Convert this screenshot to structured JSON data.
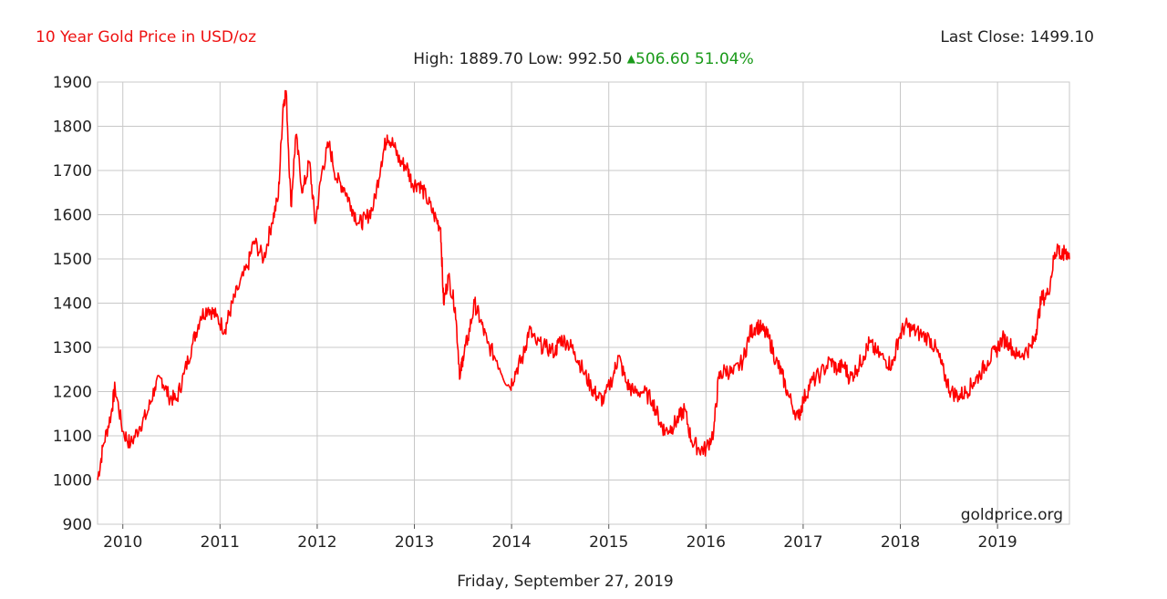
{
  "header": {
    "title": "10 Year Gold Price in USD/oz",
    "last_close_label": "Last Close:",
    "last_close_value": "1499.10",
    "high_label": "High:",
    "high_value": "1889.70",
    "low_label": "Low:",
    "low_value": "992.50",
    "change_value": "506.60",
    "change_pct": "51.04%",
    "change_icon": "up-triangle-icon"
  },
  "footer": {
    "date": "Friday, September 27, 2019"
  },
  "watermark": "goldprice.org",
  "colors": {
    "line": "#ff0000",
    "title": "#ee1111",
    "up": "#1a9a1a",
    "grid": "#c8c8c8"
  },
  "chart_data": {
    "type": "line",
    "title": "10 Year Gold Price in USD/oz",
    "xlabel": "",
    "ylabel": "",
    "ylim": [
      900,
      1900
    ],
    "xlim": [
      2009.74,
      2019.74
    ],
    "yticks": [
      "900",
      "1000",
      "1100",
      "1200",
      "1300",
      "1400",
      "1500",
      "1600",
      "1700",
      "1800",
      "1900"
    ],
    "xticks": [
      "2010",
      "2011",
      "2012",
      "2013",
      "2014",
      "2015",
      "2016",
      "2017",
      "2018",
      "2019"
    ],
    "grid": true,
    "legend": "none",
    "series": [
      {
        "x": [
          2009.74,
          2009.8,
          2009.88,
          2009.92,
          2010.0,
          2010.08,
          2010.17,
          2010.25,
          2010.33,
          2010.4,
          2010.47,
          2010.55,
          2010.63,
          2010.72,
          2010.8,
          2010.88,
          2010.96,
          2011.05,
          2011.1,
          2011.18,
          2011.28,
          2011.35,
          2011.45,
          2011.53,
          2011.6,
          2011.65,
          2011.68,
          2011.73,
          2011.78,
          2011.85,
          2011.92,
          2011.98,
          2012.05,
          2012.12,
          2012.2,
          2012.28,
          2012.35,
          2012.43,
          2012.5,
          2012.58,
          2012.66,
          2012.72,
          2012.78,
          2012.85,
          2012.92,
          2012.98,
          2013.05,
          2013.12,
          2013.2,
          2013.27,
          2013.3,
          2013.35,
          2013.42,
          2013.47,
          2013.5,
          2013.55,
          2013.62,
          2013.68,
          2013.75,
          2013.85,
          2013.98,
          2014.05,
          2014.12,
          2014.18,
          2014.25,
          2014.35,
          2014.45,
          2014.5,
          2014.58,
          2014.65,
          2014.73,
          2014.82,
          2014.88,
          2014.95,
          2015.05,
          2015.1,
          2015.18,
          2015.25,
          2015.35,
          2015.45,
          2015.53,
          2015.58,
          2015.65,
          2015.72,
          2015.78,
          2015.85,
          2015.93,
          2016.0,
          2016.08,
          2016.13,
          2016.2,
          2016.28,
          2016.38,
          2016.45,
          2016.52,
          2016.58,
          2016.65,
          2016.72,
          2016.78,
          2016.85,
          2016.95,
          2017.0,
          2017.08,
          2017.18,
          2017.28,
          2017.35,
          2017.42,
          2017.48,
          2017.55,
          2017.62,
          2017.68,
          2017.75,
          2017.85,
          2017.92,
          2017.98,
          2018.05,
          2018.12,
          2018.2,
          2018.3,
          2018.38,
          2018.45,
          2018.52,
          2018.6,
          2018.68,
          2018.75,
          2018.82,
          2018.9,
          2018.98,
          2019.05,
          2019.12,
          2019.2,
          2019.28,
          2019.35,
          2019.4,
          2019.45,
          2019.52,
          2019.58,
          2019.62,
          2019.66,
          2019.7,
          2019.74
        ],
        "y": [
          1000,
          1080,
          1150,
          1210,
          1110,
          1080,
          1120,
          1150,
          1210,
          1230,
          1190,
          1180,
          1240,
          1310,
          1370,
          1390,
          1370,
          1340,
          1380,
          1430,
          1480,
          1540,
          1500,
          1580,
          1640,
          1850,
          1880,
          1620,
          1780,
          1650,
          1720,
          1580,
          1700,
          1760,
          1680,
          1660,
          1620,
          1580,
          1590,
          1620,
          1720,
          1780,
          1760,
          1720,
          1710,
          1670,
          1670,
          1640,
          1600,
          1570,
          1400,
          1460,
          1390,
          1230,
          1280,
          1320,
          1400,
          1360,
          1310,
          1270,
          1210,
          1250,
          1280,
          1340,
          1310,
          1300,
          1290,
          1320,
          1310,
          1290,
          1250,
          1210,
          1190,
          1180,
          1240,
          1280,
          1220,
          1200,
          1200,
          1180,
          1130,
          1110,
          1120,
          1140,
          1160,
          1090,
          1070,
          1070,
          1110,
          1230,
          1250,
          1240,
          1270,
          1330,
          1350,
          1340,
          1320,
          1270,
          1240,
          1190,
          1140,
          1180,
          1220,
          1240,
          1270,
          1250,
          1260,
          1230,
          1250,
          1280,
          1310,
          1290,
          1270,
          1260,
          1320,
          1350,
          1340,
          1330,
          1320,
          1290,
          1240,
          1200,
          1190,
          1200,
          1220,
          1240,
          1270,
          1290,
          1320,
          1310,
          1280,
          1290,
          1300,
          1340,
          1410,
          1420,
          1500,
          1530,
          1500,
          1520,
          1499.1
        ]
      }
    ]
  }
}
